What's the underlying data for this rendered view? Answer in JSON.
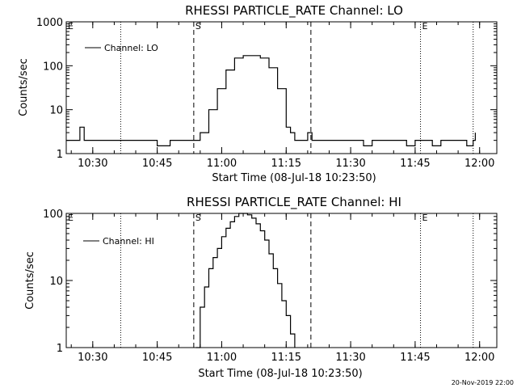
{
  "footer": "20-Nov-2019 22:00",
  "chart_data": [
    {
      "type": "line",
      "title": "RHESSI PARTICLE_RATE Channel: LO",
      "xlabel": "Start Time (08-Jul-18 10:23:50)",
      "ylabel": "Counts/sec",
      "yscale": "log",
      "ylim": [
        1,
        1000
      ],
      "xlim": [
        "10:23:50",
        "12:04:00"
      ],
      "x_tick_labels": [
        "10:30",
        "10:45",
        "11:00",
        "11:15",
        "11:30",
        "11:45",
        "12:00"
      ],
      "y_tick_labels": [
        "1",
        "10",
        "100",
        "1000"
      ],
      "legend": {
        "label": "Channel: LO",
        "position": "top-left"
      },
      "markers": [
        {
          "time": "10:23:50",
          "label": "E",
          "style": "none"
        },
        {
          "time": "10:36:30",
          "label": "",
          "style": "dotted"
        },
        {
          "time": "10:53:30",
          "label": "S",
          "style": "dashed"
        },
        {
          "time": "11:20:45",
          "label": "",
          "style": "dashed"
        },
        {
          "time": "11:46:15",
          "label": "E",
          "style": "dotted"
        },
        {
          "time": "11:58:30",
          "label": "",
          "style": "dotted"
        }
      ],
      "series": [
        {
          "x": [
            "10:23:50",
            "10:26:00",
            "10:27:00",
            "10:28:00",
            "10:29:00",
            "10:30:00",
            "10:31:00",
            "10:32:00",
            "10:33:00",
            "10:34:00",
            "10:36:00",
            "10:37:00",
            "10:38:00",
            "10:39:00",
            "10:40:00",
            "10:42:00",
            "10:43:00",
            "10:45:00",
            "10:46:00",
            "10:48:00",
            "10:49:00",
            "10:50:00",
            "10:52:00",
            "10:53:30",
            "10:55:00",
            "10:57:00",
            "10:59:00",
            "11:01:00",
            "11:03:00",
            "11:05:00",
            "11:07:00",
            "11:09:00",
            "11:11:00",
            "11:13:00",
            "11:15:00",
            "11:16:00",
            "11:17:00",
            "11:18:00",
            "11:19:00",
            "11:20:00",
            "11:21:00",
            "11:23:00",
            "11:25:00",
            "11:27:00",
            "11:29:00",
            "11:31:00",
            "11:33:00",
            "11:35:00",
            "11:37:00",
            "11:39:00",
            "11:41:00",
            "11:43:00",
            "11:45:00",
            "11:47:00",
            "11:49:00",
            "11:51:00",
            "11:53:00",
            "11:55:00",
            "11:57:00",
            "11:58:30",
            "11:59:00"
          ],
          "values": [
            2,
            2,
            4,
            2,
            2,
            2,
            2,
            2,
            2,
            2,
            2,
            2,
            2,
            2,
            2,
            2,
            2,
            1.5,
            1.5,
            2,
            2,
            2,
            2,
            2,
            3,
            10,
            30,
            80,
            150,
            170,
            170,
            150,
            90,
            30,
            4,
            3,
            2,
            2,
            2,
            3,
            2,
            2,
            2,
            2,
            2,
            2,
            1.5,
            2,
            2,
            2,
            2,
            1.5,
            2,
            2,
            1.5,
            2,
            2,
            2,
            1.5,
            2,
            3
          ]
        }
      ]
    },
    {
      "type": "line",
      "title": "RHESSI PARTICLE_RATE Channel: HI",
      "xlabel": "Start Time (08-Jul-18 10:23:50)",
      "ylabel": "Counts/sec",
      "yscale": "log",
      "ylim": [
        1,
        100
      ],
      "xlim": [
        "10:23:50",
        "12:04:00"
      ],
      "x_tick_labels": [
        "10:30",
        "10:45",
        "11:00",
        "11:15",
        "11:30",
        "11:45",
        "12:00"
      ],
      "y_tick_labels": [
        "1",
        "10",
        "100"
      ],
      "legend": {
        "label": "Channel: HI",
        "position": "top-left"
      },
      "markers": [
        {
          "time": "10:23:50",
          "label": "E",
          "style": "none"
        },
        {
          "time": "10:36:30",
          "label": "",
          "style": "dotted"
        },
        {
          "time": "10:53:30",
          "label": "S",
          "style": "dashed"
        },
        {
          "time": "11:20:45",
          "label": "",
          "style": "dashed"
        },
        {
          "time": "11:46:15",
          "label": "E",
          "style": "dotted"
        },
        {
          "time": "11:58:30",
          "label": "",
          "style": "dotted"
        }
      ],
      "series": [
        {
          "x": [
            "10:54:00",
            "10:55:00",
            "10:56:00",
            "10:57:00",
            "10:58:00",
            "10:59:00",
            "11:00:00",
            "11:01:00",
            "11:02:00",
            "11:03:00",
            "11:04:00",
            "11:05:00",
            "11:06:00",
            "11:07:00",
            "11:08:00",
            "11:09:00",
            "11:10:00",
            "11:11:00",
            "11:12:00",
            "11:13:00",
            "11:14:00",
            "11:15:00",
            "11:16:00",
            "11:17:00"
          ],
          "values": [
            1,
            4,
            8,
            15,
            22,
            30,
            45,
            60,
            75,
            90,
            100,
            100,
            95,
            85,
            70,
            55,
            40,
            25,
            15,
            9,
            5,
            3,
            1.6,
            1
          ]
        }
      ]
    }
  ]
}
